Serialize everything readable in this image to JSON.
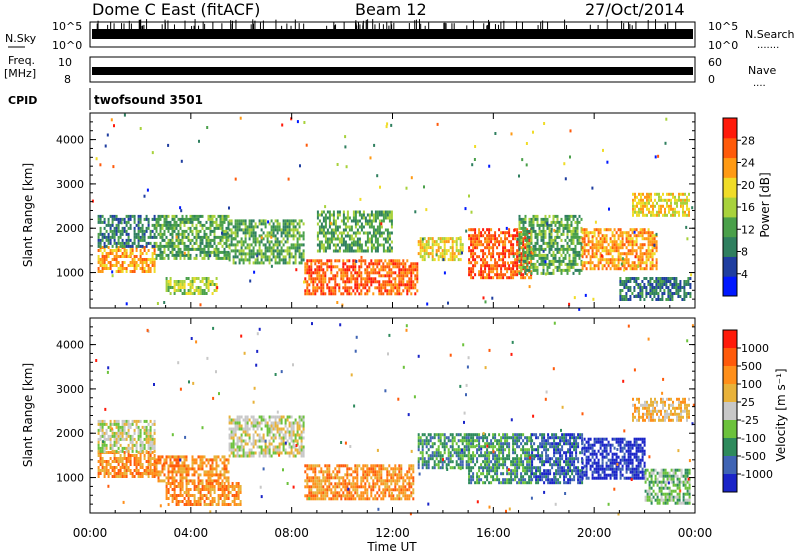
{
  "header": {
    "station": "Dome C East (fitACF)",
    "beam": "Beam 12",
    "date": "27/Oct/2014"
  },
  "panels": {
    "nsky": {
      "label": "N.Sky",
      "y_top": "10^5",
      "y_bottom": "10^0",
      "right_top": "10^5",
      "right_bottom": "10^0",
      "right_label": "N.Search"
    },
    "freq": {
      "label_line1": "Freq.",
      "label_line2": "[MHz]",
      "y_top": "10",
      "y_bottom": "8",
      "right_top": "60",
      "right_bottom": "0",
      "right_label": "Nave"
    },
    "cpid": {
      "label": "CPID",
      "mode": "twofsound  3501"
    }
  },
  "x_axis": {
    "label": "Time UT",
    "ticks": [
      "00:00",
      "04:00",
      "08:00",
      "12:00",
      "16:00",
      "20:00",
      "00:00"
    ]
  },
  "colors": {
    "power_scale": [
      "#0018ff",
      "#1f3ea0",
      "#2f7f5f",
      "#4aa04a",
      "#a8d23c",
      "#f0dc28",
      "#ff9a14",
      "#ff5a0a",
      "#ff1a0a"
    ],
    "velocity_scale": [
      "#ff1a0a",
      "#ff5a0a",
      "#ff8f1a",
      "#e8b23a",
      "#c8c8c8",
      "#6cc23c",
      "#2e8a5c",
      "#3f64b4",
      "#1a24c8"
    ]
  },
  "chart_data": [
    {
      "type": "heatmap",
      "name": "power",
      "ylabel": "Slant Range [km]",
      "yticks": [
        "1000",
        "2000",
        "3000",
        "4000"
      ],
      "ylim": [
        200,
        4600
      ],
      "xlim_hours": [
        0,
        24
      ],
      "colorbar": {
        "label": "Power [dB]",
        "ticks": [
          "4",
          "8",
          "12",
          "16",
          "20",
          "24",
          "28"
        ],
        "range": [
          0,
          32
        ]
      },
      "regions": [
        {
          "t0": 0.3,
          "t1": 2.6,
          "r0": 1000,
          "r1": 1600,
          "level": 24
        },
        {
          "t0": 0.3,
          "t1": 2.6,
          "r0": 1600,
          "r1": 2300,
          "level": 8
        },
        {
          "t0": 2.6,
          "t1": 5.5,
          "r0": 1300,
          "r1": 2300,
          "level": 12
        },
        {
          "t0": 3.0,
          "t1": 5.0,
          "r0": 500,
          "r1": 900,
          "level": 14
        },
        {
          "t0": 5.5,
          "t1": 8.5,
          "r0": 1200,
          "r1": 2200,
          "level": 10
        },
        {
          "t0": 8.5,
          "t1": 13.0,
          "r0": 500,
          "r1": 1300,
          "level": 28
        },
        {
          "t0": 9.0,
          "t1": 12.0,
          "r0": 1500,
          "r1": 2400,
          "level": 12
        },
        {
          "t0": 13.0,
          "t1": 14.8,
          "r0": 1300,
          "r1": 1800,
          "level": 18
        },
        {
          "t0": 15.0,
          "t1": 17.5,
          "r0": 900,
          "r1": 2000,
          "level": 26
        },
        {
          "t0": 17.0,
          "t1": 19.5,
          "r0": 1000,
          "r1": 2300,
          "level": 10
        },
        {
          "t0": 19.5,
          "t1": 22.5,
          "r0": 1100,
          "r1": 2000,
          "level": 22
        },
        {
          "t0": 21.0,
          "t1": 23.8,
          "r0": 400,
          "r1": 900,
          "level": 8
        },
        {
          "t0": 21.5,
          "t1": 23.8,
          "r0": 2300,
          "r1": 2800,
          "level": 18
        }
      ]
    },
    {
      "type": "heatmap",
      "name": "velocity",
      "ylabel": "Slant Range [km]",
      "yticks": [
        "1000",
        "2000",
        "3000",
        "4000"
      ],
      "ylim": [
        200,
        4600
      ],
      "xlim_hours": [
        0,
        24
      ],
      "colorbar": {
        "label": "Velocity  [m s⁻¹]",
        "ticks": [
          "1000",
          "500",
          "100",
          "25",
          "-25",
          "-100",
          "-500",
          "-1000"
        ],
        "range": [
          -1000,
          1000
        ]
      },
      "regions": [
        {
          "t0": 0.3,
          "t1": 2.6,
          "r0": 1000,
          "r1": 1600,
          "level": 2
        },
        {
          "t0": 0.3,
          "t1": 2.6,
          "r0": 1600,
          "r1": 2300,
          "level": 4
        },
        {
          "t0": 2.6,
          "t1": 5.5,
          "r0": 900,
          "r1": 1500,
          "level": 2
        },
        {
          "t0": 3.0,
          "t1": 6.0,
          "r0": 400,
          "r1": 900,
          "level": 2
        },
        {
          "t0": 5.5,
          "t1": 8.5,
          "r0": 1500,
          "r1": 2400,
          "level": 4
        },
        {
          "t0": 8.5,
          "t1": 12.8,
          "r0": 500,
          "r1": 1300,
          "level": 2
        },
        {
          "t0": 13.0,
          "t1": 15.0,
          "r0": 1200,
          "r1": 2000,
          "level": 6
        },
        {
          "t0": 15.0,
          "t1": 17.5,
          "r0": 900,
          "r1": 2000,
          "level": 6
        },
        {
          "t0": 17.5,
          "t1": 19.5,
          "r0": 900,
          "r1": 2000,
          "level": 7
        },
        {
          "t0": 19.5,
          "t1": 22.0,
          "r0": 1000,
          "r1": 1900,
          "level": 8
        },
        {
          "t0": 22.0,
          "t1": 23.8,
          "r0": 400,
          "r1": 1200,
          "level": 5
        },
        {
          "t0": 21.5,
          "t1": 23.8,
          "r0": 2300,
          "r1": 2800,
          "level": 3
        }
      ]
    }
  ]
}
